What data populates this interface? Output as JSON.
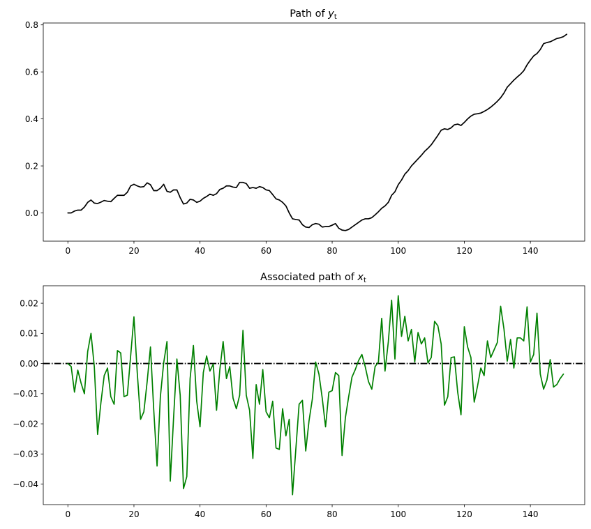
{
  "chart_data": [
    {
      "type": "line",
      "title": "Path of ",
      "title_var": "y",
      "title_sub": "t",
      "xlim": [
        -7.45,
        156.45
      ],
      "ylim": [
        -0.12,
        0.808
      ],
      "xticks": [
        0,
        20,
        40,
        60,
        80,
        100,
        120,
        140
      ],
      "yticks": [
        0.0,
        0.2,
        0.4,
        0.6,
        0.8
      ],
      "ytick_decimals": 1,
      "grid": false,
      "series": [
        {
          "color": "#000000",
          "x_start": 0,
          "values": [
            0.0,
            0.0,
            0.008,
            0.012,
            0.012,
            0.025,
            0.045,
            0.055,
            0.042,
            0.04,
            0.046,
            0.053,
            0.05,
            0.048,
            0.062,
            0.075,
            0.075,
            0.075,
            0.088,
            0.115,
            0.122,
            0.115,
            0.11,
            0.112,
            0.128,
            0.12,
            0.095,
            0.095,
            0.105,
            0.122,
            0.092,
            0.088,
            0.098,
            0.098,
            0.065,
            0.038,
            0.042,
            0.058,
            0.055,
            0.045,
            0.05,
            0.062,
            0.07,
            0.08,
            0.075,
            0.082,
            0.1,
            0.105,
            0.115,
            0.115,
            0.11,
            0.108,
            0.13,
            0.13,
            0.125,
            0.105,
            0.108,
            0.105,
            0.112,
            0.108,
            0.098,
            0.095,
            0.078,
            0.06,
            0.055,
            0.045,
            0.03,
            0.0,
            -0.025,
            -0.028,
            -0.03,
            -0.05,
            -0.06,
            -0.062,
            -0.05,
            -0.045,
            -0.048,
            -0.06,
            -0.058,
            -0.058,
            -0.052,
            -0.045,
            -0.065,
            -0.073,
            -0.075,
            -0.07,
            -0.06,
            -0.05,
            -0.04,
            -0.03,
            -0.025,
            -0.025,
            -0.02,
            -0.008,
            0.005,
            0.02,
            0.03,
            0.045,
            0.075,
            0.09,
            0.12,
            0.14,
            0.165,
            0.18,
            0.2,
            0.215,
            0.23,
            0.245,
            0.262,
            0.275,
            0.29,
            0.31,
            0.33,
            0.352,
            0.358,
            0.355,
            0.362,
            0.375,
            0.378,
            0.372,
            0.385,
            0.4,
            0.412,
            0.42,
            0.422,
            0.425,
            0.432,
            0.44,
            0.45,
            0.462,
            0.475,
            0.49,
            0.51,
            0.535,
            0.55,
            0.565,
            0.578,
            0.59,
            0.605,
            0.63,
            0.65,
            0.668,
            0.678,
            0.695,
            0.72,
            0.725,
            0.728,
            0.735,
            0.742,
            0.745,
            0.75,
            0.76
          ]
        }
      ]
    },
    {
      "type": "line",
      "title": "Associated path of ",
      "title_var": "x",
      "title_sub": "t",
      "xlim": [
        -7.45,
        156.45
      ],
      "ylim": [
        -0.0468,
        0.0258
      ],
      "xticks": [
        0,
        20,
        40,
        60,
        80,
        100,
        120,
        140
      ],
      "yticks": [
        -0.04,
        -0.03,
        -0.02,
        -0.01,
        0.0,
        0.01,
        0.02
      ],
      "ytick_decimals": 2,
      "grid": false,
      "reference_line": {
        "y": 0,
        "color": "#000000",
        "style": "dash-dot"
      },
      "series": [
        {
          "color": "#008000",
          "x_start": 0,
          "values": [
            0.0,
            -0.001,
            -0.0095,
            -0.0022,
            -0.0065,
            -0.01,
            0.004,
            0.01,
            -0.001,
            -0.0235,
            -0.013,
            -0.004,
            -0.0015,
            -0.011,
            -0.0135,
            0.0043,
            0.0035,
            -0.011,
            -0.0105,
            0.0025,
            0.0155,
            -0.003,
            -0.0185,
            -0.016,
            -0.006,
            0.0055,
            -0.0155,
            -0.034,
            -0.011,
            0.0002,
            0.0073,
            -0.039,
            -0.018,
            0.0015,
            -0.0105,
            -0.0415,
            -0.0375,
            -0.005,
            0.006,
            -0.0125,
            -0.021,
            -0.003,
            0.0025,
            -0.0025,
            -0.0002,
            -0.0155,
            -0.002,
            0.0073,
            -0.005,
            -0.001,
            -0.0115,
            -0.015,
            -0.0105,
            0.011,
            -0.0105,
            -0.0155,
            -0.0315,
            -0.007,
            -0.0135,
            -0.002,
            -0.016,
            -0.018,
            -0.0125,
            -0.028,
            -0.0285,
            -0.015,
            -0.024,
            -0.0185,
            -0.0435,
            -0.0285,
            -0.0135,
            -0.0122,
            -0.029,
            -0.019,
            -0.0118,
            0.0005,
            -0.0035,
            -0.0115,
            -0.021,
            -0.0095,
            -0.009,
            -0.003,
            -0.004,
            -0.0305,
            -0.018,
            -0.011,
            -0.0045,
            -0.002,
            0.001,
            0.003,
            -0.001,
            -0.006,
            -0.0085,
            -0.001,
            0.0005,
            0.015,
            -0.0025,
            0.0072,
            0.021,
            0.0015,
            0.0225,
            0.009,
            0.0157,
            0.0075,
            0.0113,
            0.0005,
            0.0103,
            0.0065,
            0.0085,
            0.0002,
            0.002,
            0.014,
            0.0125,
            0.0065,
            -0.0138,
            -0.011,
            0.002,
            0.0022,
            -0.0095,
            -0.017,
            0.0122,
            0.0055,
            0.002,
            -0.0128,
            -0.0075,
            -0.0015,
            -0.004,
            0.0075,
            0.002,
            0.0045,
            0.007,
            0.019,
            0.0115,
            0.0008,
            0.008,
            -0.0015,
            0.0085,
            0.0085,
            0.0075,
            0.0188,
            0.0005,
            0.003,
            0.0167,
            -0.0035,
            -0.0085,
            -0.0055,
            0.0013,
            -0.0078,
            -0.007,
            -0.005,
            -0.0035
          ]
        }
      ]
    }
  ]
}
